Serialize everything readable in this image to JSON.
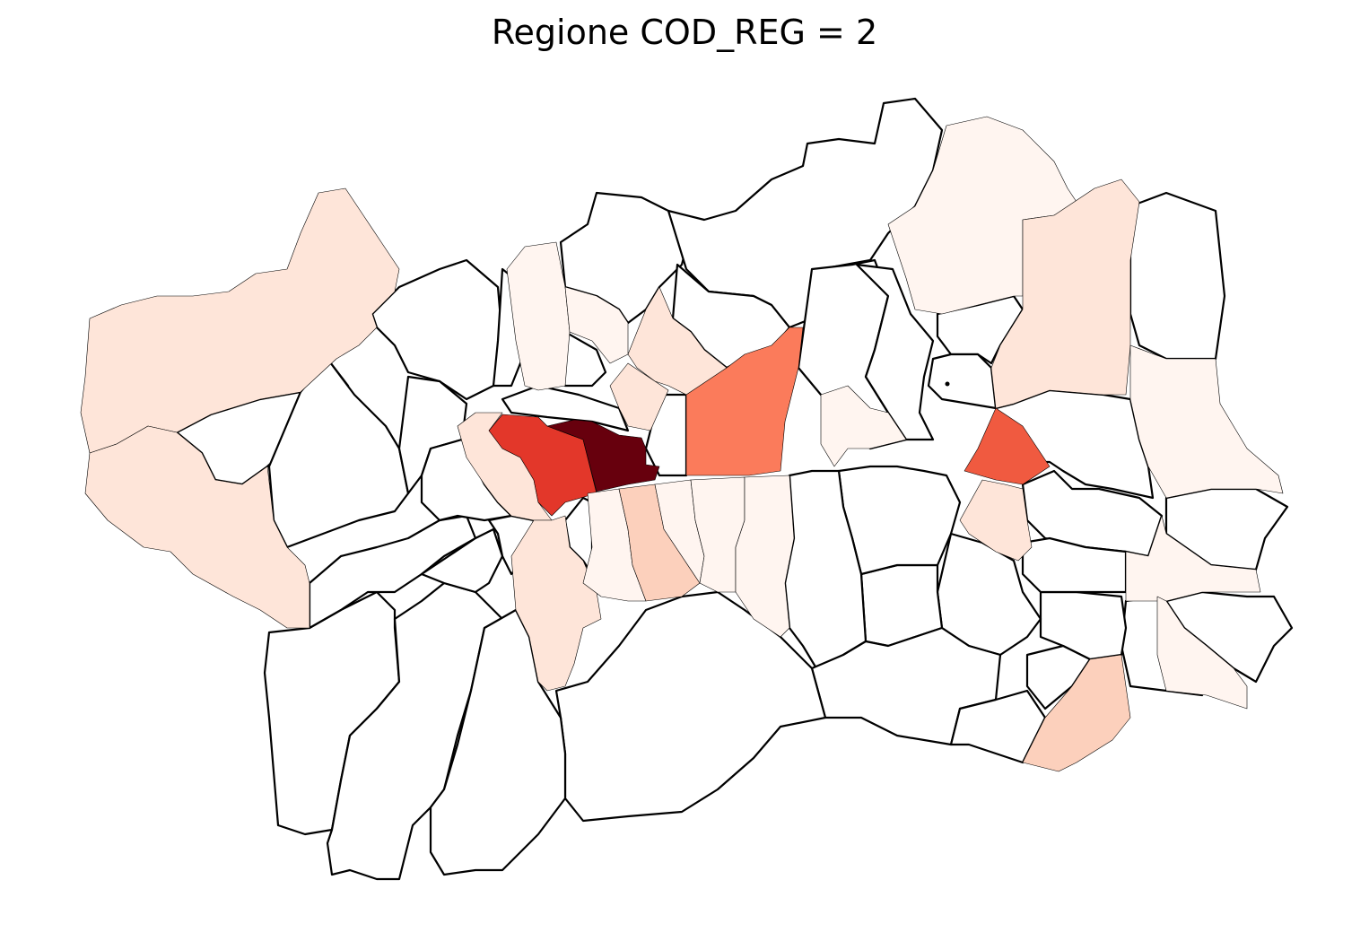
{
  "title": "Regione COD_REG = 2",
  "colors": {
    "background": "#ffffff",
    "border": "#000000",
    "scale": [
      "#fff5f0",
      "#fee5d9",
      "#fcd0bc",
      "#fb7b5b",
      "#f05a40",
      "#e3372a",
      "#67000d"
    ]
  },
  "map_data": {
    "type": "choropleth",
    "colormap": "Reds",
    "no_data_fill": "#ffffff",
    "levels": [
      0,
      1,
      2,
      3,
      4,
      5,
      6
    ]
  }
}
